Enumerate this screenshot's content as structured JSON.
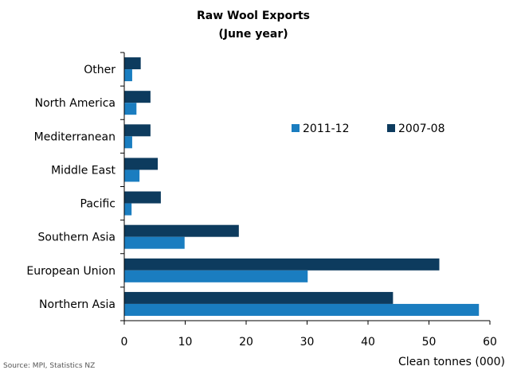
{
  "chart_data": {
    "type": "bar",
    "orientation": "horizontal",
    "title": "Raw Wool Exports",
    "subtitle": "(June year)",
    "xlabel": "Clean tonnes (000)",
    "ylabel": "",
    "xlim": [
      0,
      60
    ],
    "x_ticks": [
      0,
      10,
      20,
      30,
      40,
      50,
      60
    ],
    "grid": false,
    "legend_position": "center-right",
    "categories": [
      "Other",
      "North America",
      "Mediterranean",
      "Middle East",
      "Pacific",
      "Southern Asia",
      "European Union",
      "Northern Asia"
    ],
    "series": [
      {
        "name": "2011-12",
        "color": "#1a7dc0",
        "values": [
          1.3,
          2.0,
          1.3,
          2.5,
          1.2,
          9.9,
          30.1,
          58.2
        ]
      },
      {
        "name": "2007-08",
        "color": "#0d3b5e",
        "values": [
          2.7,
          4.3,
          4.3,
          5.5,
          6.0,
          18.8,
          51.7,
          44.1
        ]
      }
    ],
    "source": "Source: MPI, Statistics NZ"
  }
}
